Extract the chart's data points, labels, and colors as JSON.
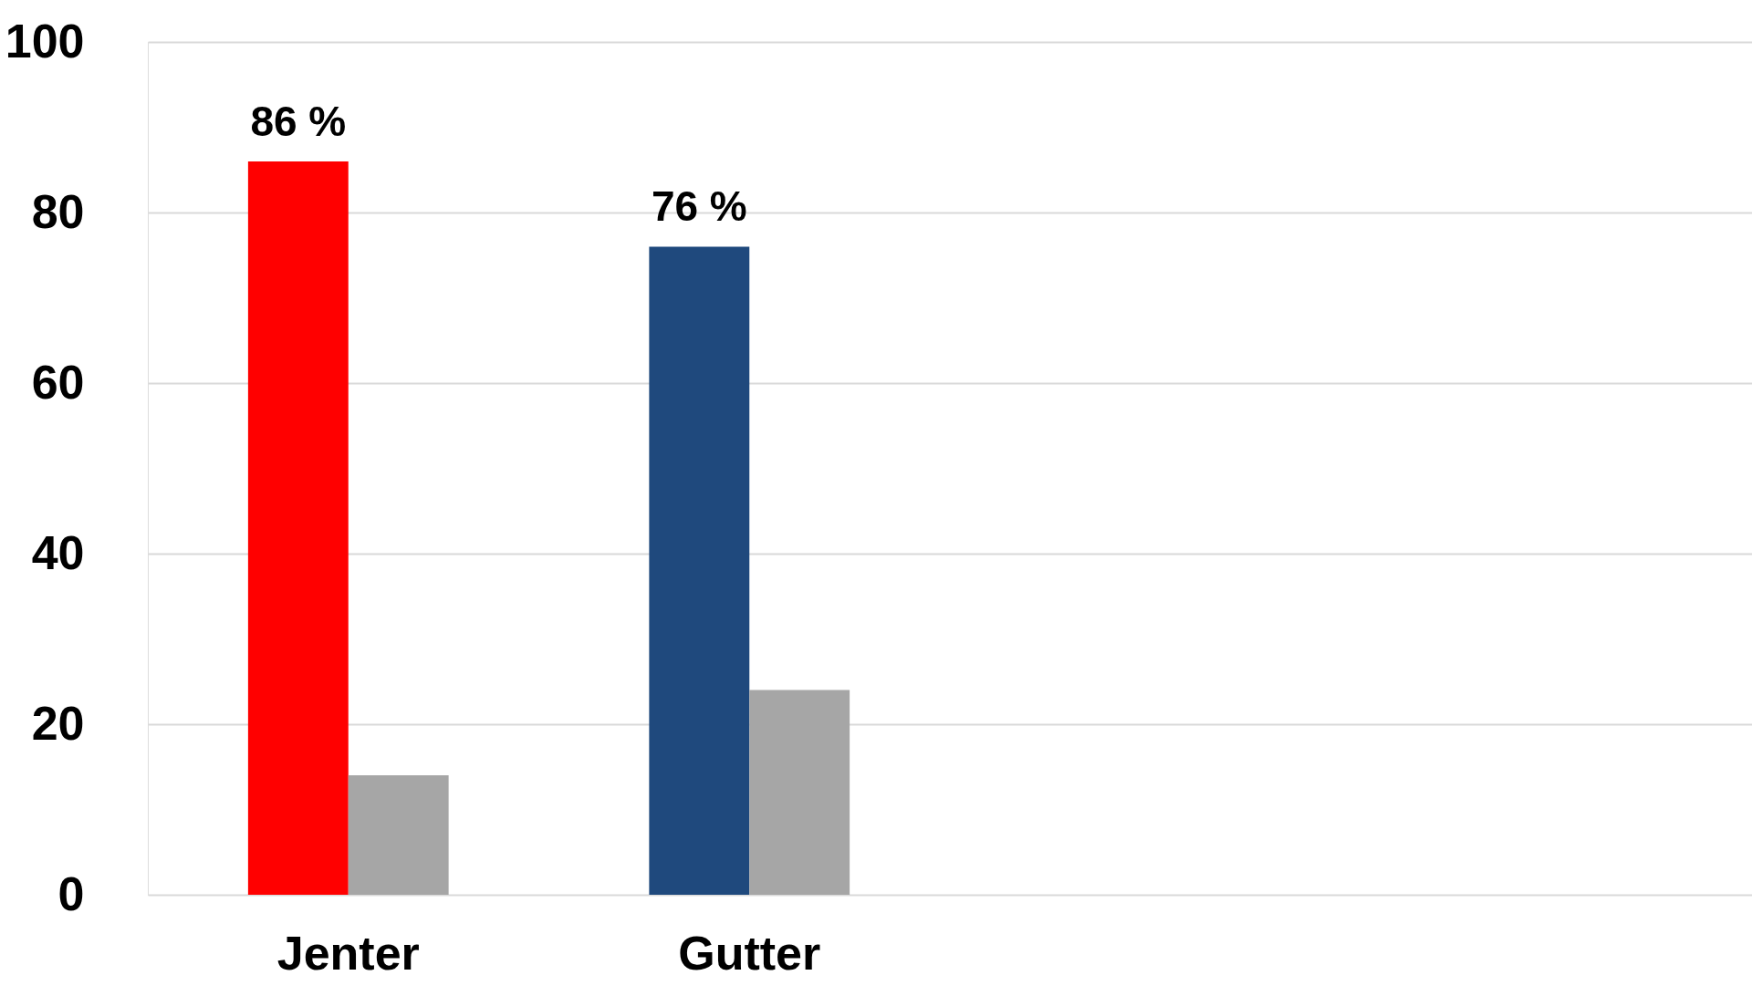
{
  "chart_data": {
    "type": "bar",
    "categories": [
      "Jenter",
      "Gutter",
      null,
      null
    ],
    "series": [
      {
        "colors": [
          "#ff0000",
          "#1f497d",
          null,
          null
        ],
        "values": [
          86,
          76,
          null,
          null
        ],
        "value_labels": [
          "86 %",
          "76 %",
          null,
          null
        ]
      },
      {
        "color": "#a6a6a6",
        "values": [
          14,
          24,
          null,
          null
        ]
      }
    ],
    "ylim": [
      0,
      100
    ],
    "yticks": [
      0,
      20,
      40,
      60,
      80,
      100
    ],
    "grid": "y"
  }
}
